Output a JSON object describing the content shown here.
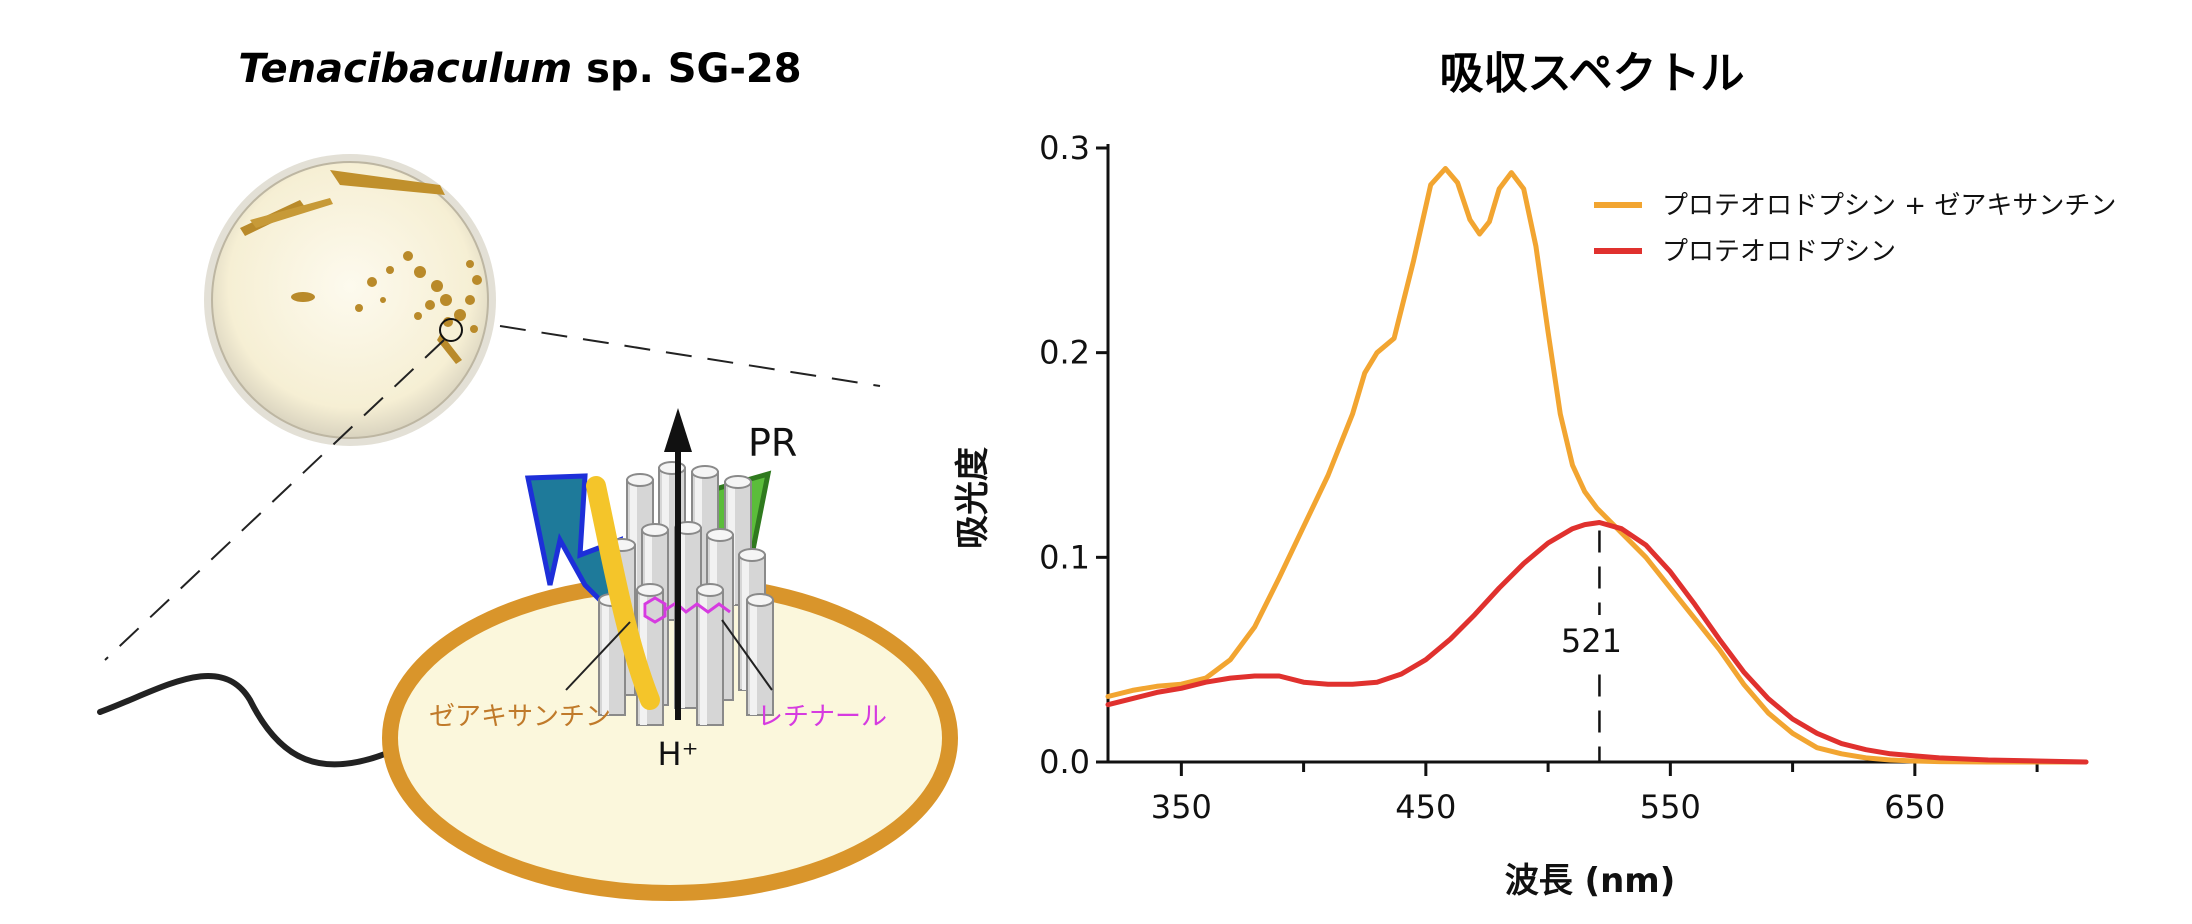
{
  "left_panel": {
    "title_italic": "Tenacibaculum",
    "title_rest": " sp. SG-28",
    "labels": {
      "pr": "PR",
      "zeaxanthin": "ゼアキサンチン",
      "retinal": "レチナール",
      "proton": "H⁺"
    },
    "colors": {
      "membrane_fill": "#fbf7dc",
      "membrane_stroke": "#d9952b",
      "zeaxanthin": "#f4c52a",
      "zeaxanthin_label": "#c07a2a",
      "retinal": "#d63be0",
      "blue_light": "#1e7a9a",
      "green_light": "#5bbd3a"
    }
  },
  "chart_data": {
    "type": "line",
    "title": "吸収スペクトル",
    "xlabel": "波長 (nm)",
    "ylabel": "吸光度",
    "xlim": [
      320,
      720
    ],
    "ylim": [
      0,
      0.3
    ],
    "xticks": [
      350,
      450,
      550,
      650
    ],
    "yticks": [
      0.0,
      0.1,
      0.2,
      0.3
    ],
    "ytick_labels": [
      "0.0",
      "0.1",
      "0.2",
      "0.3"
    ],
    "legend_position": "top-right",
    "annotation": {
      "text": "521",
      "x": 521
    },
    "series": [
      {
        "name": "プロテオロドプシン + ゼアキサンチン",
        "color": "#f2a531",
        "x": [
          320,
          330,
          340,
          350,
          360,
          370,
          380,
          390,
          400,
          410,
          420,
          425,
          430,
          437,
          445,
          452,
          458,
          463,
          468,
          472,
          476,
          480,
          485,
          490,
          495,
          500,
          505,
          510,
          515,
          520,
          525,
          530,
          540,
          550,
          560,
          570,
          580,
          590,
          600,
          610,
          620,
          630,
          640,
          650,
          660,
          680,
          700,
          720
        ],
        "y": [
          0.032,
          0.035,
          0.037,
          0.038,
          0.041,
          0.05,
          0.066,
          0.09,
          0.115,
          0.14,
          0.17,
          0.19,
          0.2,
          0.207,
          0.245,
          0.282,
          0.29,
          0.283,
          0.265,
          0.258,
          0.264,
          0.28,
          0.288,
          0.28,
          0.252,
          0.21,
          0.17,
          0.145,
          0.132,
          0.124,
          0.118,
          0.112,
          0.1,
          0.085,
          0.07,
          0.055,
          0.038,
          0.024,
          0.014,
          0.007,
          0.004,
          0.002,
          0.001,
          0.0005,
          0.0002,
          0.0,
          0.0,
          0.0
        ]
      },
      {
        "name": "プロテオロドプシン",
        "color": "#e0312e",
        "x": [
          320,
          330,
          340,
          350,
          360,
          370,
          380,
          390,
          400,
          410,
          420,
          430,
          440,
          450,
          460,
          470,
          480,
          490,
          500,
          510,
          515,
          521,
          530,
          540,
          550,
          560,
          570,
          580,
          590,
          600,
          610,
          620,
          630,
          640,
          650,
          660,
          680,
          700,
          720
        ],
        "y": [
          0.028,
          0.031,
          0.034,
          0.036,
          0.039,
          0.041,
          0.042,
          0.042,
          0.039,
          0.038,
          0.038,
          0.039,
          0.043,
          0.05,
          0.06,
          0.072,
          0.085,
          0.097,
          0.107,
          0.114,
          0.116,
          0.117,
          0.114,
          0.106,
          0.093,
          0.077,
          0.06,
          0.044,
          0.031,
          0.021,
          0.014,
          0.009,
          0.006,
          0.004,
          0.003,
          0.002,
          0.001,
          0.0005,
          0.0
        ]
      }
    ]
  }
}
